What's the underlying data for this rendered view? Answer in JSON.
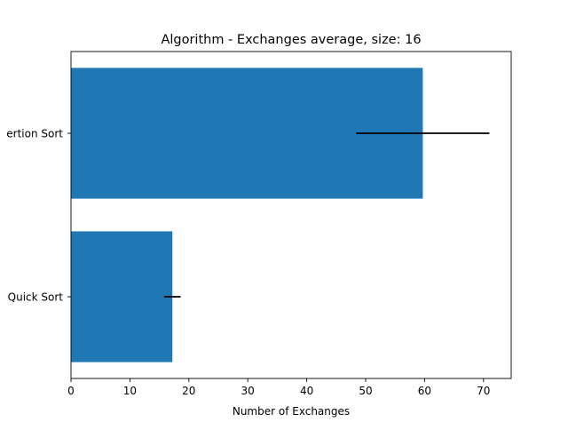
{
  "chart_data": {
    "type": "bar",
    "orientation": "horizontal",
    "title": "Algorithm - Exchanges average, size: 16",
    "xlabel": "Number of Exchanges",
    "ylabel": "",
    "categories": [
      "Quick Sort",
      "Insertion Sort"
    ],
    "visible_category_labels": [
      "Quick Sort",
      "ertion Sort"
    ],
    "values": [
      17.2,
      59.7
    ],
    "error": [
      1.4,
      11.3
    ],
    "xlim": [
      0,
      74.7
    ],
    "xticks": [
      0,
      10,
      20,
      30,
      40,
      50,
      60,
      70
    ],
    "grid": false,
    "legend": "none",
    "bar_color": "#1f77b4",
    "error_color": "#000000"
  }
}
